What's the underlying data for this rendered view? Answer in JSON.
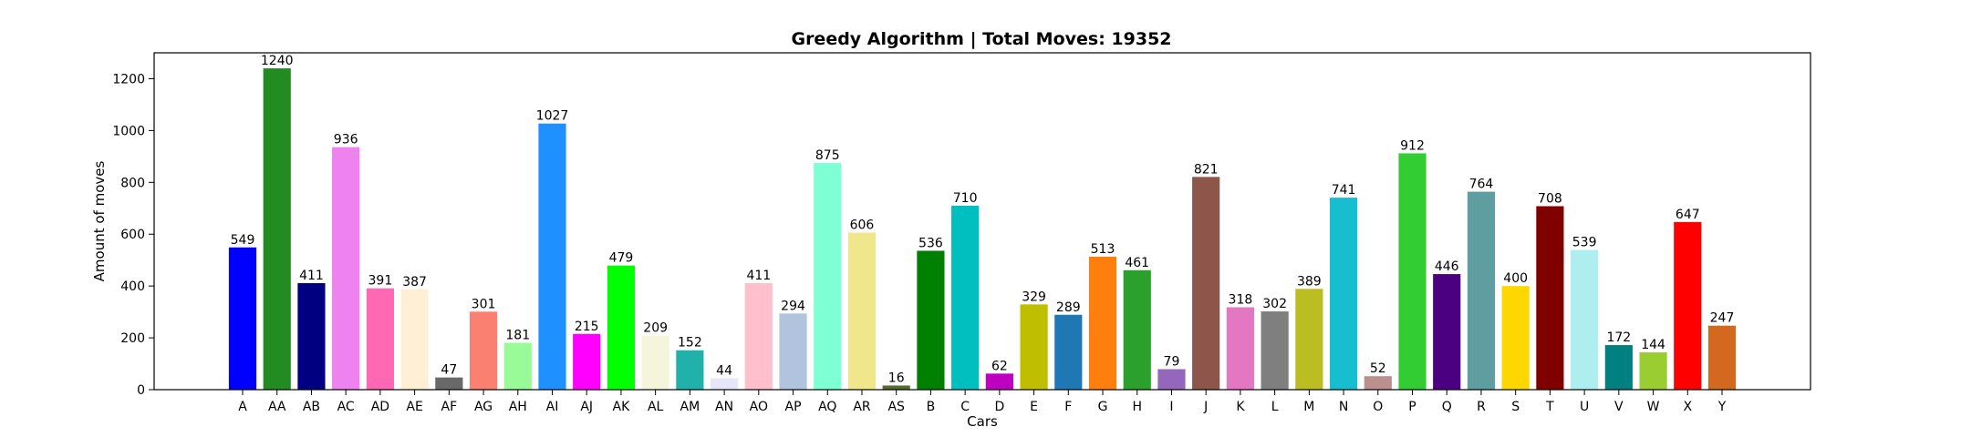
{
  "chart_data": {
    "type": "bar",
    "title": "Greedy Algorithm | Total Moves: 19352",
    "xlabel": "Cars",
    "ylabel": "Amount of moves",
    "ylim": [
      0,
      1300
    ],
    "yticks": [
      0,
      200,
      400,
      600,
      800,
      1000,
      1200
    ],
    "grid": false,
    "categories": [
      "A",
      "AA",
      "AB",
      "AC",
      "AD",
      "AE",
      "AF",
      "AG",
      "AH",
      "AI",
      "AJ",
      "AK",
      "AL",
      "AM",
      "AN",
      "AO",
      "AP",
      "AQ",
      "AR",
      "AS",
      "B",
      "C",
      "D",
      "E",
      "F",
      "G",
      "H",
      "I",
      "J",
      "K",
      "L",
      "M",
      "N",
      "O",
      "P",
      "Q",
      "R",
      "S",
      "T",
      "U",
      "V",
      "W",
      "X",
      "Y"
    ],
    "values": [
      549,
      1240,
      411,
      936,
      391,
      387,
      47,
      301,
      181,
      1027,
      215,
      479,
      209,
      152,
      44,
      411,
      294,
      875,
      606,
      16,
      536,
      710,
      62,
      329,
      289,
      513,
      461,
      79,
      821,
      318,
      302,
      389,
      741,
      52,
      912,
      446,
      764,
      400,
      708,
      539,
      172,
      144,
      647,
      247
    ],
    "colors": [
      "#0000ff",
      "#228b22",
      "#000080",
      "#ee82ee",
      "#ff69b4",
      "#ffefd5",
      "#696969",
      "#fa8072",
      "#98fb98",
      "#1e90ff",
      "#ff00ff",
      "#00ff00",
      "#f5f5dc",
      "#20b2aa",
      "#e6e6fa",
      "#ffc0cb",
      "#b0c4de",
      "#7fffd4",
      "#f0e68c",
      "#556b2f",
      "#008000",
      "#00bfbf",
      "#bf00bf",
      "#bfbf00",
      "#1f77b4",
      "#ff7f0e",
      "#2ca02c",
      "#9467bd",
      "#8c564b",
      "#e377c2",
      "#7f7f7f",
      "#bcbd22",
      "#17becf",
      "#bc8f8f",
      "#32cd32",
      "#4b0082",
      "#5f9ea0",
      "#ffd700",
      "#800000",
      "#afeeee",
      "#008080",
      "#9acd32",
      "#ff0000",
      "#d2691e"
    ]
  }
}
